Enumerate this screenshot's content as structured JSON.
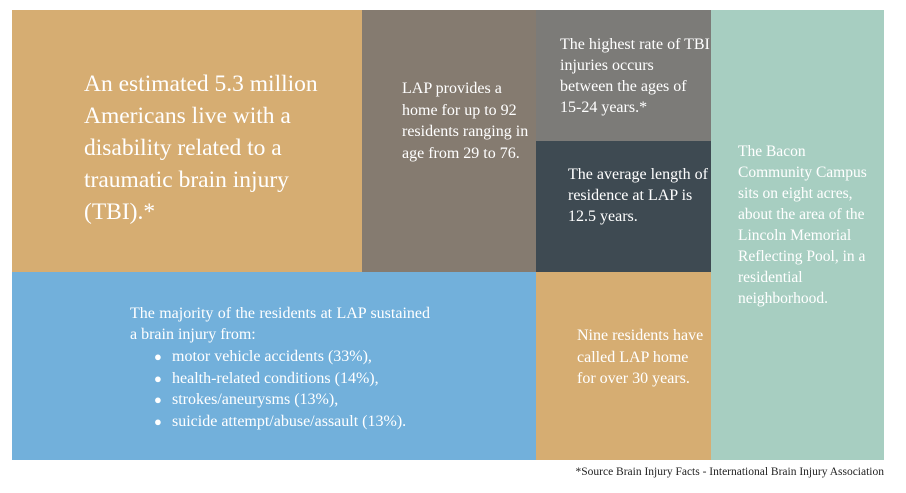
{
  "tiles": {
    "tbi_estimate": "An estimated 5.3 million Americans live with a disability related to a traumatic brain injury (TBI).*",
    "lap_home": "LAP provides a home for up to 92 residents ranging in age from 29 to 76.",
    "highest_rate": "The highest rate of TBI injuries occurs between the ages of 15-24 years.*",
    "average_residence": "The average length of residence at LAP is 12.5 years.",
    "campus": "The Bacon Community Campus sits on eight acres, about the area of the Lincoln Memorial Reflecting Pool, in a residential neighborhood.",
    "causes": {
      "intro": "The majority of the residents at LAP sustained a brain injury from:",
      "items": [
        "motor vehicle accidents (33%),",
        "health-related conditions (14%),",
        "strokes/aneurysms (13%),",
        "suicide attempt/abuse/assault (13%)."
      ]
    },
    "nine_residents": "Nine residents have called LAP home for over 30 years."
  },
  "footnote": "*Source Brain Injury Facts - International Brain Injury Association",
  "colors": {
    "tan": "#d6ad72",
    "taupe": "#857b70",
    "grey": "#7c7b78",
    "slate": "#3e4a52",
    "teal": "#a7cec1",
    "blue": "#72b0db"
  }
}
